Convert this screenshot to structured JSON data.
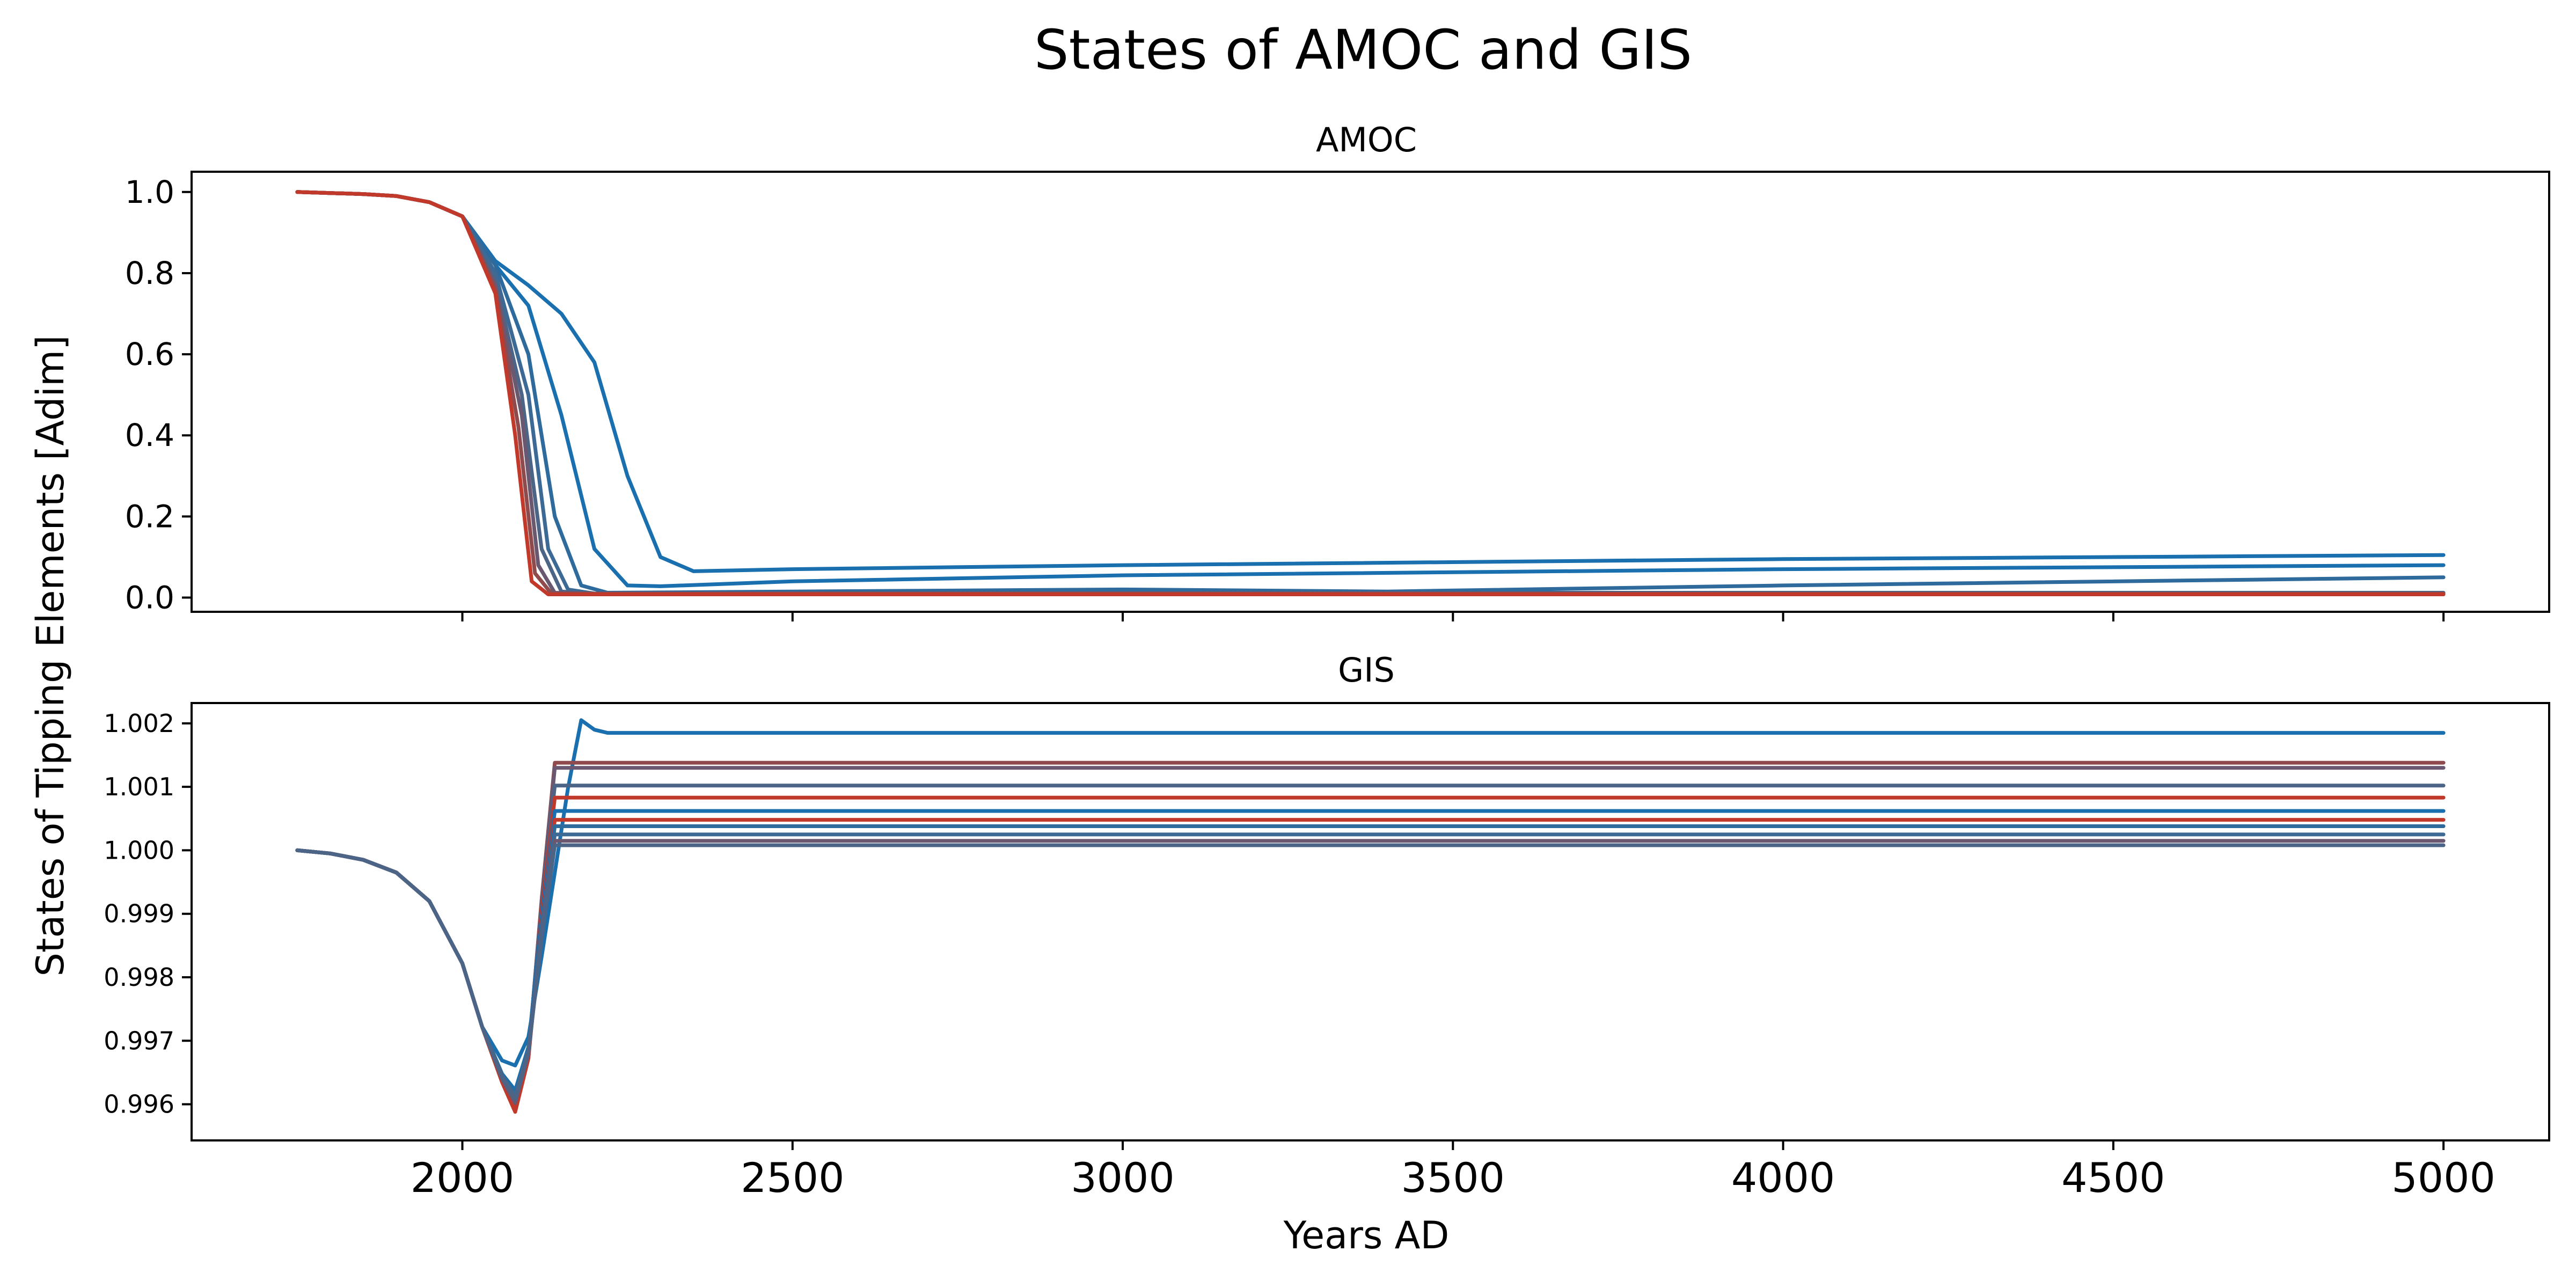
{
  "chart_data": {
    "type": "line",
    "title": "States of AMOC and GIS",
    "ylabel": "States of Tipping Elements [Adim]",
    "xlabel": "Years AD",
    "xlim": [
      1590,
      5160
    ],
    "xticks": [
      2000,
      2500,
      3000,
      3500,
      4000,
      4500,
      5000
    ],
    "xtick_labels": [
      "2000",
      "2500",
      "3000",
      "3500",
      "4000",
      "4500",
      "5000"
    ],
    "grid": false,
    "panels": [
      {
        "id": "amoc",
        "title": "AMOC",
        "ylim": [
          -0.035,
          1.05
        ],
        "yticks": [
          0.0,
          0.2,
          0.4,
          0.6,
          0.8,
          1.0
        ],
        "ytick_labels": [
          "0.0",
          "0.2",
          "0.4",
          "0.6",
          "0.8",
          "1.0"
        ],
        "series": [
          {
            "color": "#1a6faf",
            "x": [
              1750,
              1850,
              1900,
              1950,
              2000,
              2050,
              2100,
              2150,
              2200,
              2250,
              2300,
              2350,
              2500,
              3000,
              4000,
              5000
            ],
            "y": [
              1.0,
              0.995,
              0.99,
              0.975,
              0.94,
              0.83,
              0.77,
              0.7,
              0.58,
              0.3,
              0.1,
              0.065,
              0.07,
              0.08,
              0.095,
              0.105
            ]
          },
          {
            "color": "#1a6faf",
            "x": [
              1750,
              1850,
              1900,
              1950,
              2000,
              2050,
              2100,
              2150,
              2200,
              2250,
              2300,
              2500,
              3000,
              4000,
              5000
            ],
            "y": [
              1.0,
              0.995,
              0.99,
              0.975,
              0.94,
              0.82,
              0.72,
              0.45,
              0.12,
              0.03,
              0.028,
              0.04,
              0.055,
              0.07,
              0.08
            ]
          },
          {
            "color": "#2e6a9c",
            "x": [
              1750,
              1850,
              1900,
              1950,
              2000,
              2050,
              2100,
              2140,
              2180,
              2220,
              2500,
              3000,
              3400,
              4000,
              5000
            ],
            "y": [
              1.0,
              0.995,
              0.99,
              0.975,
              0.94,
              0.82,
              0.6,
              0.2,
              0.03,
              0.012,
              0.015,
              0.02,
              0.015,
              0.03,
              0.05
            ]
          },
          {
            "color": "#3d6a94",
            "x": [
              1750,
              1850,
              1900,
              1950,
              2000,
              2050,
              2100,
              2130,
              2160,
              2200,
              3000,
              5000
            ],
            "y": [
              1.0,
              0.995,
              0.99,
              0.975,
              0.94,
              0.8,
              0.5,
              0.12,
              0.02,
              0.01,
              0.012,
              0.012
            ]
          },
          {
            "color": "#4c6587",
            "x": [
              1750,
              1850,
              1900,
              1950,
              2000,
              2050,
              2090,
              2120,
              2150,
              2200,
              5000
            ],
            "y": [
              1.0,
              0.995,
              0.99,
              0.975,
              0.94,
              0.78,
              0.5,
              0.12,
              0.015,
              0.01,
              0.01
            ]
          },
          {
            "color": "#6a5870",
            "x": [
              1750,
              1850,
              1900,
              1950,
              2000,
              2050,
              2090,
              2115,
              2140,
              2180,
              5000
            ],
            "y": [
              1.0,
              0.995,
              0.99,
              0.975,
              0.94,
              0.77,
              0.45,
              0.08,
              0.012,
              0.01,
              0.01
            ]
          },
          {
            "color": "#8f4a4d",
            "x": [
              1750,
              1850,
              1900,
              1950,
              2000,
              2050,
              2085,
              2110,
              2135,
              2170,
              5000
            ],
            "y": [
              1.0,
              0.995,
              0.99,
              0.975,
              0.94,
              0.76,
              0.42,
              0.06,
              0.01,
              0.01,
              0.01
            ]
          },
          {
            "color": "#c0392b",
            "x": [
              1750,
              1850,
              1900,
              1950,
              2000,
              2050,
              2080,
              2105,
              2130,
              2160,
              5000
            ],
            "y": [
              1.0,
              0.995,
              0.99,
              0.975,
              0.94,
              0.75,
              0.4,
              0.04,
              0.008,
              0.008,
              0.008
            ]
          }
        ]
      },
      {
        "id": "gis",
        "title": "GIS",
        "ylim": [
          0.99543,
          1.00232
        ],
        "yticks": [
          0.996,
          0.997,
          0.998,
          0.999,
          1.0,
          1.001,
          1.002
        ],
        "ytick_labels": [
          "0.996",
          "0.997",
          "0.998",
          "0.999",
          "1.000",
          "1.001",
          "1.002"
        ],
        "series": [
          {
            "color": "#1a6faf",
            "x": [
              1750,
              1800,
              1850,
              1900,
              1950,
              2000,
              2030,
              2060,
              2080,
              2100,
              2120,
              2140,
              2160,
              2180,
              2200,
              2220,
              5000
            ],
            "y": [
              1.0,
              0.99995,
              0.99985,
              0.99965,
              0.9992,
              0.99822,
              0.99722,
              0.99669,
              0.99661,
              0.99706,
              0.99832,
              0.99965,
              1.00098,
              1.00205,
              1.0019,
              1.00185,
              1.00185
            ]
          },
          {
            "color": "#8f4a4d",
            "x": [
              1750,
              1800,
              1850,
              1900,
              1950,
              2000,
              2030,
              2060,
              2080,
              2100,
              2120,
              2140,
              2160,
              5000
            ],
            "y": [
              1.0,
              0.99995,
              0.99985,
              0.99965,
              0.9992,
              0.99822,
              0.99722,
              0.99638,
              0.99595,
              0.99675,
              0.99922,
              1.00138,
              1.00138,
              1.00138
            ]
          },
          {
            "color": "#6a5870",
            "x": [
              1750,
              1800,
              1850,
              1900,
              1950,
              2000,
              2030,
              2060,
              2080,
              2100,
              2120,
              2140,
              2160,
              5000
            ],
            "y": [
              1.0,
              0.99995,
              0.99985,
              0.99965,
              0.9992,
              0.99822,
              0.99722,
              0.9964,
              0.996,
              0.99678,
              0.99918,
              1.0013,
              1.0013,
              1.0013
            ]
          },
          {
            "color": "#4c6587",
            "x": [
              1750,
              1800,
              1850,
              1900,
              1950,
              2000,
              2030,
              2060,
              2080,
              2100,
              2120,
              2140,
              2160,
              5000
            ],
            "y": [
              1.0,
              0.99995,
              0.99985,
              0.99965,
              0.9992,
              0.99822,
              0.99722,
              0.99645,
              0.9961,
              0.99683,
              0.99908,
              1.00102,
              1.00102,
              1.00102
            ]
          },
          {
            "color": "#c0392b",
            "x": [
              1750,
              1800,
              1850,
              1900,
              1950,
              2000,
              2030,
              2060,
              2080,
              2100,
              2120,
              2140,
              2160,
              5000
            ],
            "y": [
              1.0,
              0.99995,
              0.99985,
              0.99965,
              0.9992,
              0.99822,
              0.99722,
              0.99635,
              0.99588,
              0.99672,
              0.99905,
              1.00083,
              1.00083,
              1.00083
            ]
          },
          {
            "color": "#1a6faf",
            "x": [
              1750,
              1800,
              1850,
              1900,
              1950,
              2000,
              2030,
              2060,
              2080,
              2100,
              2120,
              2140,
              2160,
              5000
            ],
            "y": [
              1.0,
              0.99995,
              0.99985,
              0.99965,
              0.9992,
              0.99822,
              0.99722,
              0.99648,
              0.99622,
              0.9969,
              0.99895,
              1.00062,
              1.00062,
              1.00062
            ]
          },
          {
            "color": "#c0392b",
            "x": [
              1750,
              1800,
              1850,
              1900,
              1950,
              2000,
              2030,
              2060,
              2080,
              2100,
              2120,
              2140,
              2160,
              5000
            ],
            "y": [
              1.0,
              0.99995,
              0.99985,
              0.99965,
              0.9992,
              0.99822,
              0.99722,
              0.99636,
              0.9959,
              0.99673,
              0.99885,
              1.00048,
              1.00048,
              1.00048
            ]
          },
          {
            "color": "#2e6a9c",
            "x": [
              1750,
              1800,
              1850,
              1900,
              1950,
              2000,
              2030,
              2060,
              2080,
              2100,
              2120,
              2140,
              2160,
              5000
            ],
            "y": [
              1.0,
              0.99995,
              0.99985,
              0.99965,
              0.9992,
              0.99822,
              0.99722,
              0.99646,
              0.99615,
              0.99687,
              0.9988,
              1.00038,
              1.00038,
              1.00038
            ]
          },
          {
            "color": "#3d6a94",
            "x": [
              1750,
              1800,
              1850,
              1900,
              1950,
              2000,
              2030,
              2060,
              2080,
              2100,
              2120,
              2140,
              2160,
              5000
            ],
            "y": [
              1.0,
              0.99995,
              0.99985,
              0.99965,
              0.9992,
              0.99822,
              0.99722,
              0.99644,
              0.99612,
              0.99685,
              0.99872,
              1.00025,
              1.00025,
              1.00025
            ]
          },
          {
            "color": "#6a5870",
            "x": [
              1750,
              1800,
              1850,
              1900,
              1950,
              2000,
              2030,
              2060,
              2080,
              2100,
              2120,
              2140,
              2160,
              5000
            ],
            "y": [
              1.0,
              0.99995,
              0.99985,
              0.99965,
              0.9992,
              0.99822,
              0.99722,
              0.9964,
              0.99602,
              0.9968,
              0.99865,
              1.00015,
              1.00015,
              1.00015
            ]
          },
          {
            "color": "#4c6587",
            "x": [
              1750,
              1800,
              1850,
              1900,
              1950,
              2000,
              2030,
              2060,
              2080,
              2100,
              2120,
              2140,
              2160,
              5000
            ],
            "y": [
              1.0,
              0.99995,
              0.99985,
              0.99965,
              0.9992,
              0.99822,
              0.99722,
              0.99643,
              0.99608,
              0.99682,
              0.9986,
              1.00008,
              1.00008,
              1.00008
            ]
          }
        ]
      }
    ]
  }
}
